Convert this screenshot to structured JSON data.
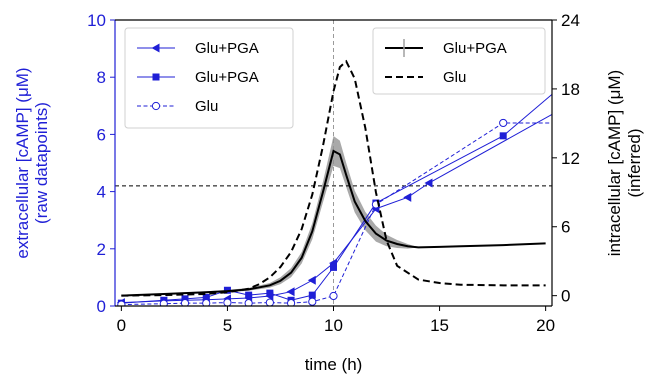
{
  "chart_data": {
    "type": "line",
    "xlabel": "time (h)",
    "ylabel_left": [
      "extracellular [cAMP] (μM)",
      "(raw datapoints)"
    ],
    "ylabel_right": [
      "intracellular [cAMP] (μM)",
      "(inferred)"
    ],
    "xlim": [
      -0.3,
      20.3
    ],
    "ylim_left": [
      0,
      10
    ],
    "ylim_right": [
      -0.9,
      24
    ],
    "xticks": [
      0,
      5,
      10,
      15,
      20
    ],
    "yticks_left": [
      0,
      2,
      4,
      6,
      8,
      10
    ],
    "yticks_right": [
      0,
      6,
      12,
      18,
      24
    ],
    "grid": false,
    "reference_lines": {
      "vertical_x": 10,
      "horizontal_y_left": 4.2
    },
    "colors": {
      "raw": "#1f1fd6",
      "inferred": "#000000",
      "band": "#a9a9a9"
    },
    "series": [
      {
        "name": "Glu+PGA",
        "axis": "left",
        "marker": "triangle-left",
        "style": "solid",
        "x": [
          0,
          2,
          3,
          4,
          5,
          6,
          7,
          8,
          9,
          10,
          12,
          13.5,
          14.5,
          20.3
        ],
        "y": [
          0.12,
          0.18,
          0.2,
          0.22,
          0.25,
          0.28,
          0.35,
          0.5,
          0.9,
          1.5,
          3.4,
          3.8,
          4.3,
          6.7
        ]
      },
      {
        "name": "Glu+PGA",
        "axis": "left",
        "marker": "square",
        "style": "solid",
        "x": [
          0,
          2,
          3,
          4,
          5,
          6,
          7,
          8,
          9,
          10,
          12,
          18,
          20.3
        ],
        "y": [
          0.1,
          0.2,
          0.25,
          0.3,
          0.55,
          0.38,
          0.45,
          0.2,
          0.38,
          1.35,
          3.6,
          5.95,
          7.4
        ]
      },
      {
        "name": "Glu",
        "axis": "left",
        "marker": "open-circle",
        "style": "dashed",
        "x": [
          0,
          2,
          3,
          4,
          5,
          6,
          7,
          8,
          9,
          10,
          12,
          18,
          20.3
        ],
        "y": [
          0.05,
          0.08,
          0.1,
          0.1,
          0.12,
          0.1,
          0.12,
          0.1,
          0.15,
          0.35,
          3.55,
          6.4,
          6.4
        ]
      },
      {
        "name": "Glu+PGA",
        "axis": "right",
        "marker": "none",
        "style": "solid",
        "uncertainty_band": true,
        "x": [
          0,
          2,
          4,
          5,
          6,
          7,
          7.5,
          8,
          8.5,
          9,
          9.5,
          10,
          10.3,
          10.6,
          11,
          11.5,
          12,
          12.5,
          13,
          13.5,
          14,
          15,
          16,
          18,
          20
        ],
        "y": [
          0,
          0.15,
          0.3,
          0.4,
          0.55,
          0.9,
          1.3,
          2.0,
          3.3,
          5.6,
          9.0,
          12.6,
          12.3,
          10.5,
          8.2,
          6.5,
          5.4,
          4.8,
          4.5,
          4.3,
          4.2,
          4.25,
          4.3,
          4.4,
          4.55
        ],
        "band_halfwidth": [
          0,
          0.05,
          0.08,
          0.1,
          0.12,
          0.2,
          0.3,
          0.4,
          0.5,
          0.7,
          0.9,
          1.3,
          1.2,
          1.05,
          0.95,
          0.8,
          0.7,
          0.5,
          0.35,
          0.2,
          0,
          0,
          0,
          0,
          0
        ]
      },
      {
        "name": "Glu",
        "axis": "right",
        "marker": "none",
        "style": "dashed",
        "x": [
          0,
          2,
          4,
          5,
          6,
          6.5,
          7,
          7.5,
          8,
          8.5,
          9,
          9.5,
          10,
          10.3,
          10.6,
          11,
          11.5,
          12,
          12.5,
          13,
          14,
          15,
          16,
          18,
          20
        ],
        "y": [
          0,
          0.05,
          0.15,
          0.3,
          0.6,
          1.0,
          1.6,
          2.5,
          3.8,
          5.8,
          8.8,
          13.0,
          17.8,
          19.9,
          20.4,
          18.9,
          14.6,
          9.0,
          4.8,
          2.6,
          1.4,
          1.1,
          0.95,
          0.9,
          0.9
        ]
      }
    ],
    "legends": [
      {
        "placement": "top-left",
        "entries": [
          {
            "label": "Glu+PGA",
            "marker": "triangle-left",
            "style": "solid"
          },
          {
            "label": "Glu+PGA",
            "marker": "square",
            "style": "solid"
          },
          {
            "label": "Glu",
            "marker": "open-circle",
            "style": "dashed"
          }
        ]
      },
      {
        "placement": "top-right",
        "entries": [
          {
            "label": "Glu+PGA",
            "marker": "errorbar",
            "style": "solid"
          },
          {
            "label": "Glu",
            "marker": "none",
            "style": "dashed"
          }
        ]
      }
    ]
  }
}
